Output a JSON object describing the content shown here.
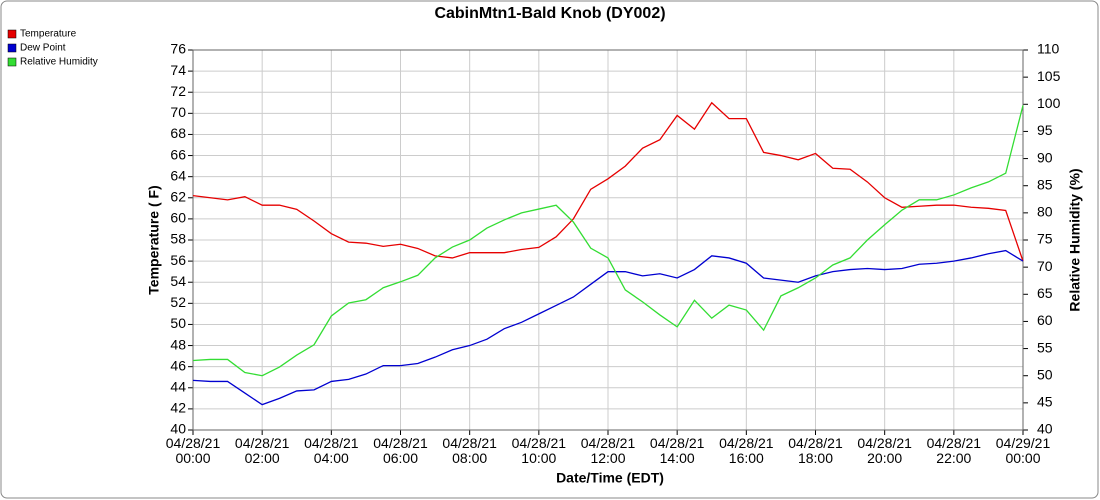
{
  "chart_data": {
    "type": "line",
    "title": "CabinMtn1-Bald Knob (DY002)",
    "x_label": "Date/Time (EDT)",
    "y_label": "Temperature ( F)",
    "y2_label": "Relative Humidity (%)",
    "grid": true,
    "legend": "top-left",
    "x": [
      "2021-04-28T00:00",
      "2021-04-28T00:30",
      "2021-04-28T01:00",
      "2021-04-28T01:30",
      "2021-04-28T02:00",
      "2021-04-28T02:30",
      "2021-04-28T03:00",
      "2021-04-28T03:30",
      "2021-04-28T04:00",
      "2021-04-28T04:30",
      "2021-04-28T05:00",
      "2021-04-28T05:30",
      "2021-04-28T06:00",
      "2021-04-28T06:30",
      "2021-04-28T07:00",
      "2021-04-28T07:30",
      "2021-04-28T08:00",
      "2021-04-28T08:30",
      "2021-04-28T09:00",
      "2021-04-28T09:30",
      "2021-04-28T10:00",
      "2021-04-28T10:30",
      "2021-04-28T11:00",
      "2021-04-28T11:30",
      "2021-04-28T12:00",
      "2021-04-28T12:30",
      "2021-04-28T13:00",
      "2021-04-28T13:30",
      "2021-04-28T14:00",
      "2021-04-28T14:30",
      "2021-04-28T15:00",
      "2021-04-28T15:30",
      "2021-04-28T16:00",
      "2021-04-28T16:30",
      "2021-04-28T17:00",
      "2021-04-28T17:30",
      "2021-04-28T18:00",
      "2021-04-28T18:30",
      "2021-04-28T19:00",
      "2021-04-28T19:30",
      "2021-04-28T20:00",
      "2021-04-28T20:30",
      "2021-04-28T21:00",
      "2021-04-28T21:30",
      "2021-04-28T22:00",
      "2021-04-28T22:30",
      "2021-04-28T23:00",
      "2021-04-28T23:30",
      "2021-04-29T00:00"
    ],
    "series": [
      {
        "name": "Temperature",
        "color": "#e60000",
        "values": [
          62.2,
          62.0,
          61.8,
          62.1,
          61.3,
          61.3,
          60.9,
          59.8,
          58.6,
          57.8,
          57.7,
          57.4,
          57.6,
          57.2,
          56.5,
          56.3,
          56.8,
          56.8,
          56.8,
          57.1,
          57.3,
          58.3,
          60.0,
          62.8,
          63.8,
          65.0,
          66.7,
          67.5,
          69.8,
          68.5,
          71.0,
          69.5,
          69.5,
          66.3,
          66.0,
          65.6,
          66.2,
          64.8,
          64.7,
          63.5,
          62.0,
          61.1,
          61.2,
          61.3,
          61.3,
          61.1,
          61.0,
          60.8,
          56.0
        ]
      },
      {
        "name": "Dew Point",
        "color": "#0000d0",
        "values": [
          44.7,
          44.6,
          44.6,
          43.5,
          42.4,
          43.0,
          43.7,
          43.8,
          44.6,
          44.8,
          45.3,
          46.1,
          46.1,
          46.3,
          46.9,
          47.6,
          48.0,
          48.6,
          49.6,
          50.2,
          51.0,
          51.8,
          52.6,
          53.8,
          55.0,
          55.0,
          54.6,
          54.8,
          54.4,
          55.2,
          56.5,
          56.3,
          55.8,
          54.4,
          54.2,
          54.0,
          54.6,
          55.0,
          55.2,
          55.3,
          55.2,
          55.3,
          55.7,
          55.8,
          56.0,
          56.3,
          56.7,
          57.0,
          56.0
        ]
      },
      {
        "name": "Relative Humidity",
        "color": "#33dd33",
        "axis": "y2",
        "values": [
          52.8,
          53.0,
          53.0,
          50.6,
          50.0,
          51.6,
          53.8,
          55.7,
          61.0,
          63.4,
          64.0,
          66.2,
          67.3,
          68.5,
          71.7,
          73.7,
          75.0,
          77.2,
          78.7,
          80.0,
          80.7,
          81.4,
          78.3,
          73.5,
          71.7,
          65.8,
          63.6,
          61.2,
          59.0,
          63.9,
          60.6,
          63.0,
          62.1,
          58.4,
          64.7,
          66.2,
          68.0,
          70.4,
          71.7,
          75.0,
          77.8,
          80.5,
          82.4,
          82.4,
          83.3,
          84.6,
          85.7,
          87.3,
          99.8
        ]
      }
    ],
    "xlim": [
      "2021-04-28T00:00",
      "2021-04-29T00:00"
    ],
    "xticks": [
      {
        "value": "2021-04-28T00:00",
        "label": "04/28/21\n00:00"
      },
      {
        "value": "2021-04-28T02:00",
        "label": "04/28/21\n02:00"
      },
      {
        "value": "2021-04-28T04:00",
        "label": "04/28/21\n04:00"
      },
      {
        "value": "2021-04-28T06:00",
        "label": "04/28/21\n06:00"
      },
      {
        "value": "2021-04-28T08:00",
        "label": "04/28/21\n08:00"
      },
      {
        "value": "2021-04-28T10:00",
        "label": "04/28/21\n10:00"
      },
      {
        "value": "2021-04-28T12:00",
        "label": "04/28/21\n12:00"
      },
      {
        "value": "2021-04-28T14:00",
        "label": "04/28/21\n14:00"
      },
      {
        "value": "2021-04-28T16:00",
        "label": "04/28/21\n16:00"
      },
      {
        "value": "2021-04-28T18:00",
        "label": "04/28/21\n18:00"
      },
      {
        "value": "2021-04-28T20:00",
        "label": "04/28/21\n20:00"
      },
      {
        "value": "2021-04-28T22:00",
        "label": "04/28/21\n22:00"
      },
      {
        "value": "2021-04-29T00:00",
        "label": "04/29/21\n00:00"
      }
    ],
    "ylim": [
      40,
      76
    ],
    "yticks": [
      40,
      42,
      44,
      46,
      48,
      50,
      52,
      54,
      56,
      58,
      60,
      62,
      64,
      66,
      68,
      70,
      72,
      74,
      76
    ],
    "y2lim": [
      40,
      110
    ],
    "y2ticks": [
      40,
      45,
      50,
      55,
      60,
      65,
      70,
      75,
      80,
      85,
      90,
      95,
      100,
      105,
      110
    ]
  }
}
